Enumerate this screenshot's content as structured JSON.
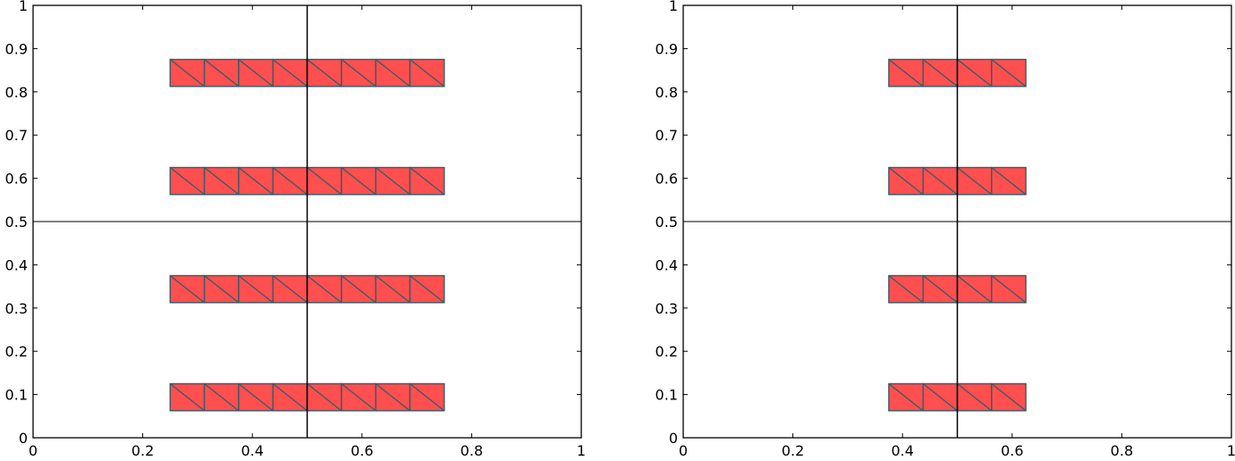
{
  "colors": {
    "fill": "#ff4f4f",
    "edge": "#3d5a66",
    "axis": "#000000",
    "refline": "#000000",
    "background": "#ffffff"
  },
  "chart_data": [
    {
      "type": "mesh",
      "title": "",
      "xlabel": "",
      "ylabel": "",
      "xlim": [
        0,
        1
      ],
      "ylim": [
        0,
        1
      ],
      "grid": false,
      "xticks": [
        0,
        0.2,
        0.4,
        0.6,
        0.8,
        1
      ],
      "xtick_labels": [
        "0",
        "0.2",
        "0.4",
        "0.6",
        "0.8",
        "1"
      ],
      "yticks": [
        0,
        0.1,
        0.2,
        0.3,
        0.4,
        0.5,
        0.6,
        0.7,
        0.8,
        0.9,
        1
      ],
      "ytick_labels": [
        "0",
        "0.1",
        "0.2",
        "0.3",
        "0.4",
        "0.5",
        "0.6",
        "0.7",
        "0.8",
        "0.9",
        "1"
      ],
      "reference_lines": {
        "x": 0.5,
        "y": 0.5
      },
      "cell_width": 0.0625,
      "strips": [
        {
          "x_start": 0.25,
          "x_end": 0.75,
          "y_bottom": 0.0625,
          "y_top": 0.125
        },
        {
          "x_start": 0.25,
          "x_end": 0.75,
          "y_bottom": 0.3125,
          "y_top": 0.375
        },
        {
          "x_start": 0.25,
          "x_end": 0.75,
          "y_bottom": 0.5625,
          "y_top": 0.625
        },
        {
          "x_start": 0.25,
          "x_end": 0.75,
          "y_bottom": 0.8125,
          "y_top": 0.875
        }
      ]
    },
    {
      "type": "mesh",
      "title": "",
      "xlabel": "",
      "ylabel": "",
      "xlim": [
        0,
        1
      ],
      "ylim": [
        0,
        1
      ],
      "grid": false,
      "xticks": [
        0,
        0.2,
        0.4,
        0.6,
        0.8,
        1
      ],
      "xtick_labels": [
        "0",
        "0.2",
        "0.4",
        "0.6",
        "0.8",
        "1"
      ],
      "yticks": [
        0,
        0.1,
        0.2,
        0.3,
        0.4,
        0.5,
        0.6,
        0.7,
        0.8,
        0.9,
        1
      ],
      "ytick_labels": [
        "0",
        "0.1",
        "0.2",
        "0.3",
        "0.4",
        "0.5",
        "0.6",
        "0.7",
        "0.8",
        "0.9",
        "1"
      ],
      "reference_lines": {
        "x": 0.5,
        "y": 0.5
      },
      "cell_width": 0.0625,
      "strips": [
        {
          "x_start": 0.375,
          "x_end": 0.625,
          "y_bottom": 0.0625,
          "y_top": 0.125
        },
        {
          "x_start": 0.375,
          "x_end": 0.625,
          "y_bottom": 0.3125,
          "y_top": 0.375
        },
        {
          "x_start": 0.375,
          "x_end": 0.625,
          "y_bottom": 0.5625,
          "y_top": 0.625
        },
        {
          "x_start": 0.375,
          "x_end": 0.625,
          "y_bottom": 0.8125,
          "y_top": 0.875
        }
      ]
    }
  ]
}
